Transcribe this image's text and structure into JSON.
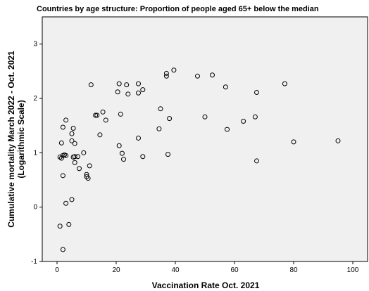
{
  "chart_data": {
    "type": "scatter",
    "title": "Countries  by age structure: Proportion of people aged 65+ below the median",
    "xlabel": "Vaccination Rate Oct. 2021",
    "ylabel_line1": "Cumulative mortality March 2022 - Oct. 2021",
    "ylabel_line2": "(Logarithmic Scale)",
    "xlim": [
      -5,
      105
    ],
    "ylim": [
      -1,
      3.5
    ],
    "xticks": [
      0,
      20,
      40,
      60,
      80,
      100
    ],
    "yticks": [
      -1,
      0,
      1,
      2,
      3
    ],
    "grid": false,
    "background": "#f0f0f0",
    "marker_color": "#000000",
    "points": [
      [
        1.0,
        -0.35
      ],
      [
        2.0,
        -0.78
      ],
      [
        4.0,
        -0.32
      ],
      [
        3.0,
        0.07
      ],
      [
        5.0,
        0.14
      ],
      [
        2.0,
        0.58
      ],
      [
        1.0,
        0.92
      ],
      [
        1.5,
        0.9
      ],
      [
        2.0,
        0.95
      ],
      [
        2.5,
        0.96
      ],
      [
        3.0,
        0.95
      ],
      [
        1.5,
        1.18
      ],
      [
        2.0,
        1.47
      ],
      [
        3.0,
        1.6
      ],
      [
        5.0,
        1.35
      ],
      [
        5.5,
        1.45
      ],
      [
        6.0,
        1.17
      ],
      [
        5.0,
        1.22
      ],
      [
        5.5,
        0.92
      ],
      [
        6.0,
        0.93
      ],
      [
        6.0,
        0.82
      ],
      [
        7.0,
        0.93
      ],
      [
        7.5,
        0.71
      ],
      [
        9.0,
        1.0
      ],
      [
        10.0,
        0.6
      ],
      [
        10.0,
        0.56
      ],
      [
        10.5,
        0.53
      ],
      [
        11.0,
        0.76
      ],
      [
        11.5,
        2.25
      ],
      [
        13.0,
        1.69
      ],
      [
        13.5,
        1.69
      ],
      [
        14.5,
        1.33
      ],
      [
        15.5,
        1.75
      ],
      [
        16.5,
        1.6
      ],
      [
        20.5,
        2.12
      ],
      [
        21.0,
        2.27
      ],
      [
        21.0,
        1.13
      ],
      [
        21.5,
        1.71
      ],
      [
        22.0,
        0.99
      ],
      [
        22.5,
        0.88
      ],
      [
        23.5,
        2.25
      ],
      [
        24.0,
        2.08
      ],
      [
        27.5,
        2.1
      ],
      [
        27.5,
        2.27
      ],
      [
        27.5,
        1.27
      ],
      [
        29.0,
        2.16
      ],
      [
        29.0,
        0.93
      ],
      [
        34.5,
        1.44
      ],
      [
        35.0,
        1.81
      ],
      [
        37.0,
        2.46
      ],
      [
        37.0,
        2.41
      ],
      [
        37.5,
        0.97
      ],
      [
        38.0,
        1.63
      ],
      [
        39.5,
        2.52
      ],
      [
        47.5,
        2.41
      ],
      [
        50.0,
        1.66
      ],
      [
        52.5,
        2.43
      ],
      [
        57.0,
        2.21
      ],
      [
        57.5,
        1.43
      ],
      [
        63.0,
        1.58
      ],
      [
        67.0,
        1.66
      ],
      [
        67.5,
        2.11
      ],
      [
        67.5,
        0.85
      ],
      [
        77.0,
        2.27
      ],
      [
        80.0,
        1.2
      ],
      [
        95.0,
        1.22
      ]
    ]
  }
}
